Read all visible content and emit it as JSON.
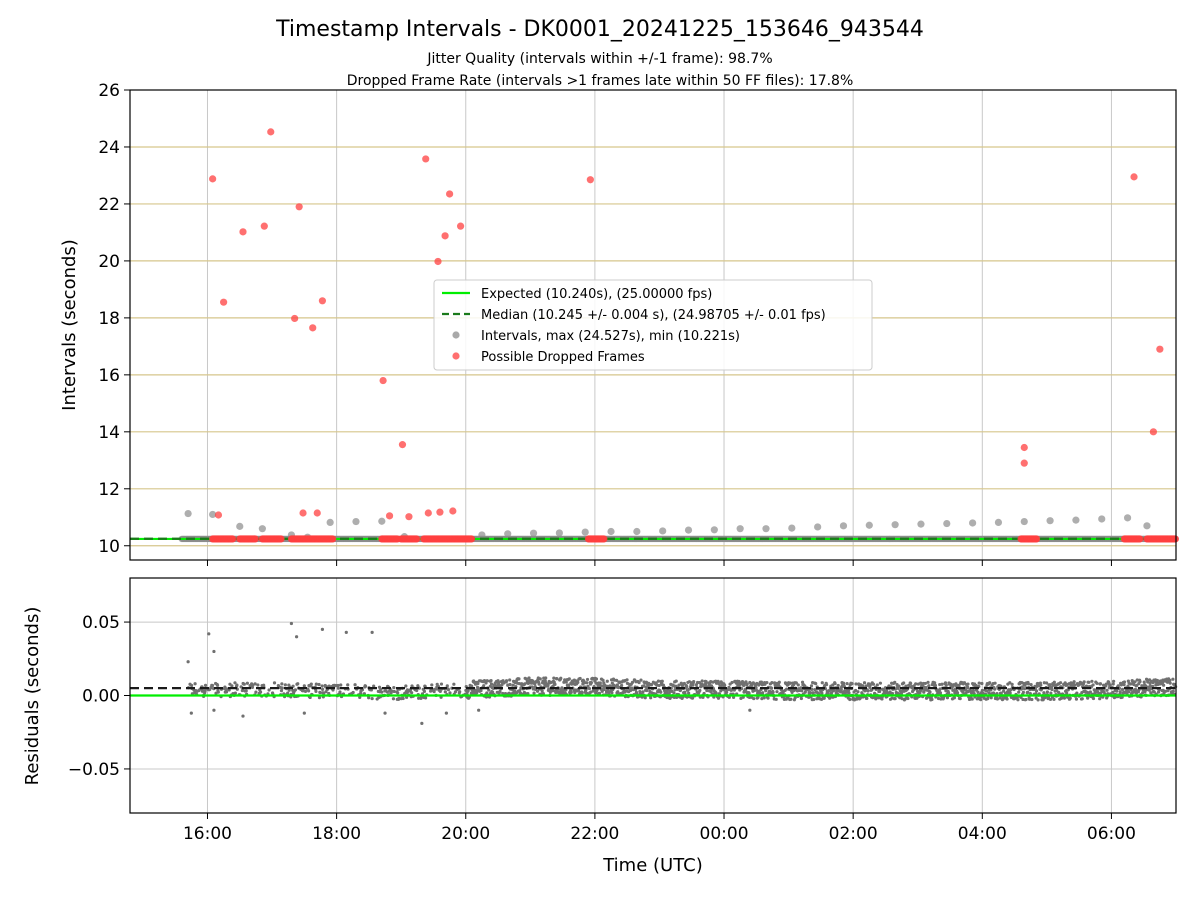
{
  "chart_data": [
    {
      "type": "scatter",
      "panel": "intervals",
      "title": "Timestamp Intervals - DK0001_20241225_153646_943544",
      "subtitle_lines": [
        "Jitter Quality (intervals within +/-1 frame): 98.7%",
        "Dropped Frame Rate (intervals >1 frames late within 50 FF files): 17.8%"
      ],
      "xlabel": "",
      "ylabel": "Intervals (seconds)",
      "x_axis": "time (hours since 00:00 of 2024-12-25, values above 24 fall on 2024-12-26)",
      "xlim": [
        14.8,
        31.0
      ],
      "ylim": [
        9.5,
        26
      ],
      "x_ticks": [
        {
          "x": 16,
          "label": "16:00"
        },
        {
          "x": 18,
          "label": "18:00"
        },
        {
          "x": 20,
          "label": "20:00"
        },
        {
          "x": 22,
          "label": "22:00"
        },
        {
          "x": 24,
          "label": "00:00"
        },
        {
          "x": 26,
          "label": "02:00"
        },
        {
          "x": 28,
          "label": "04:00"
        },
        {
          "x": 30,
          "label": "06:00"
        }
      ],
      "y_ticks": [
        {
          "y": 10,
          "label": "10"
        },
        {
          "y": 12,
          "label": "12"
        },
        {
          "y": 14,
          "label": "14"
        },
        {
          "y": 16,
          "label": "16"
        },
        {
          "y": 18,
          "label": "18"
        },
        {
          "y": 20,
          "label": "20"
        },
        {
          "y": 22,
          "label": "22"
        },
        {
          "y": 24,
          "label": "24"
        },
        {
          "y": 26,
          "label": "26"
        }
      ],
      "hlines_y": [
        10,
        12,
        14,
        16,
        18,
        20,
        22,
        24
      ],
      "grid": true,
      "legend_position": "center",
      "expected_line": {
        "label": "Expected (10.240s), (25.00000 fps)",
        "y": 10.24,
        "color": "#00ee00"
      },
      "median_line": {
        "label": "Median (10.245 +/- 0.004 s), (24.98705 +/- 0.01 fps)",
        "y": 10.245,
        "color": "#1a7a1a"
      },
      "intervals_series": {
        "label": "Intervals, max (24.527s), min (10.221s)",
        "color": "#8c8c8c",
        "baseline_y": 10.24,
        "baseline_x_range": [
          15.6,
          31.0
        ],
        "points": [
          [
            15.7,
            11.13
          ],
          [
            16.08,
            11.1
          ],
          [
            16.5,
            10.68
          ],
          [
            16.85,
            10.6
          ],
          [
            17.3,
            10.38
          ],
          [
            17.55,
            10.3
          ],
          [
            17.9,
            10.82
          ],
          [
            18.3,
            10.85
          ],
          [
            18.7,
            10.86
          ],
          [
            19.05,
            10.32
          ],
          [
            20.25,
            10.38
          ],
          [
            20.65,
            10.42
          ],
          [
            21.05,
            10.44
          ],
          [
            21.45,
            10.45
          ],
          [
            21.85,
            10.48
          ],
          [
            22.25,
            10.5
          ],
          [
            22.65,
            10.5
          ],
          [
            23.05,
            10.52
          ],
          [
            23.45,
            10.55
          ],
          [
            23.85,
            10.56
          ],
          [
            24.25,
            10.6
          ],
          [
            24.65,
            10.6
          ],
          [
            25.05,
            10.62
          ],
          [
            25.45,
            10.66
          ],
          [
            25.85,
            10.7
          ],
          [
            26.25,
            10.72
          ],
          [
            26.65,
            10.74
          ],
          [
            27.05,
            10.76
          ],
          [
            27.45,
            10.78
          ],
          [
            27.85,
            10.8
          ],
          [
            28.25,
            10.82
          ],
          [
            28.65,
            10.85
          ],
          [
            29.05,
            10.88
          ],
          [
            29.45,
            10.9
          ],
          [
            29.85,
            10.94
          ],
          [
            30.25,
            10.98
          ],
          [
            30.55,
            10.7
          ]
        ]
      },
      "dropped_series": {
        "label": "Possible Dropped Frames",
        "color": "#ff4040",
        "baseline_segments": [
          [
            16.08,
            16.4
          ],
          [
            16.5,
            16.75
          ],
          [
            16.85,
            17.15
          ],
          [
            17.3,
            17.95
          ],
          [
            18.7,
            18.95
          ],
          [
            19.0,
            19.25
          ],
          [
            19.35,
            20.1
          ],
          [
            21.9,
            22.15
          ],
          [
            28.6,
            28.85
          ],
          [
            30.2,
            30.45
          ],
          [
            30.55,
            31.0
          ]
        ],
        "points": [
          [
            16.08,
            22.88
          ],
          [
            16.17,
            11.08
          ],
          [
            16.25,
            18.55
          ],
          [
            16.55,
            21.02
          ],
          [
            16.88,
            21.22
          ],
          [
            16.98,
            24.53
          ],
          [
            17.35,
            17.98
          ],
          [
            17.42,
            21.9
          ],
          [
            17.48,
            11.15
          ],
          [
            17.63,
            17.65
          ],
          [
            17.7,
            11.15
          ],
          [
            17.78,
            18.6
          ],
          [
            18.72,
            15.8
          ],
          [
            18.82,
            11.05
          ],
          [
            19.02,
            13.55
          ],
          [
            19.12,
            11.02
          ],
          [
            19.38,
            23.58
          ],
          [
            19.42,
            11.15
          ],
          [
            19.57,
            19.98
          ],
          [
            19.6,
            11.18
          ],
          [
            19.68,
            20.88
          ],
          [
            19.75,
            22.35
          ],
          [
            19.8,
            11.22
          ],
          [
            19.92,
            21.22
          ],
          [
            21.93,
            22.85
          ],
          [
            28.65,
            13.45
          ],
          [
            28.65,
            12.9
          ],
          [
            30.35,
            22.95
          ],
          [
            30.65,
            14.0
          ],
          [
            30.75,
            16.9
          ]
        ]
      }
    },
    {
      "type": "scatter",
      "panel": "residuals",
      "xlabel": "Time (UTC)",
      "ylabel": "Residuals (seconds)",
      "xlim": [
        14.8,
        31.0
      ],
      "ylim": [
        -0.08,
        0.08
      ],
      "y_ticks": [
        {
          "y": 0.05,
          "label": "0.05"
        },
        {
          "y": 0.0,
          "label": "0.00"
        },
        {
          "y": -0.05,
          "label": "−0.05"
        }
      ],
      "grid": true,
      "expected_line_y": 0.0,
      "median_line_y": 0.005,
      "residual_color": "#707070",
      "residual_trend": [
        [
          15.7,
          0.004
        ],
        [
          17.0,
          0.004
        ],
        [
          18.0,
          0.003
        ],
        [
          19.0,
          0.002
        ],
        [
          20.0,
          0.004
        ],
        [
          21.0,
          0.006
        ],
        [
          22.0,
          0.006
        ],
        [
          23.0,
          0.004
        ],
        [
          24.0,
          0.004
        ],
        [
          25.0,
          0.003
        ],
        [
          26.0,
          0.003
        ],
        [
          27.0,
          0.003
        ],
        [
          28.0,
          0.003
        ],
        [
          29.0,
          0.003
        ],
        [
          30.0,
          0.004
        ],
        [
          31.0,
          0.006
        ]
      ],
      "residual_spread": 0.006,
      "outliers": [
        [
          15.7,
          0.023
        ],
        [
          16.02,
          0.042
        ],
        [
          16.1,
          0.03
        ],
        [
          17.3,
          0.049
        ],
        [
          17.38,
          0.04
        ],
        [
          17.78,
          0.045
        ],
        [
          18.15,
          0.043
        ],
        [
          18.55,
          0.043
        ],
        [
          15.75,
          -0.012
        ],
        [
          16.1,
          -0.01
        ],
        [
          16.55,
          -0.014
        ],
        [
          17.5,
          -0.012
        ],
        [
          18.75,
          -0.012
        ],
        [
          19.32,
          -0.019
        ],
        [
          19.7,
          -0.012
        ],
        [
          20.2,
          -0.01
        ],
        [
          24.4,
          -0.01
        ]
      ]
    }
  ]
}
